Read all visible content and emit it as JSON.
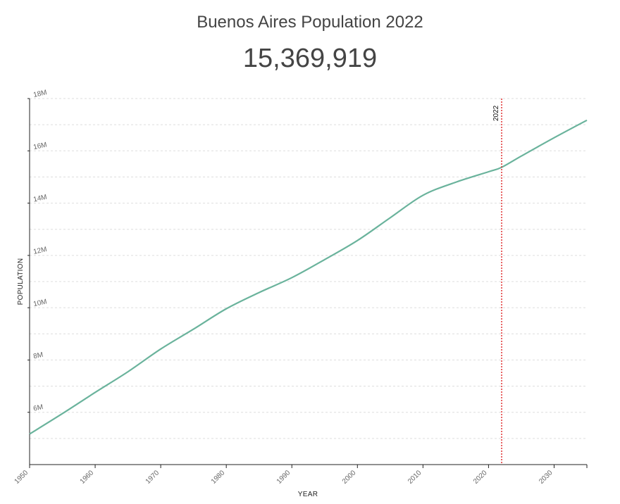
{
  "header": {
    "title": "Buenos Aires Population 2022",
    "value": "15,369,919"
  },
  "chart_data": {
    "type": "line",
    "title": "Buenos Aires Population 2022",
    "xlabel": "YEAR",
    "ylabel": "POPULATION",
    "xlim": [
      1950,
      2035
    ],
    "ylim": [
      4000000,
      18000000
    ],
    "x_ticks": [
      1950,
      1960,
      1970,
      1980,
      1990,
      2000,
      2010,
      2020,
      2030
    ],
    "y_ticks": [
      {
        "value": 6000000,
        "label": "6M"
      },
      {
        "value": 8000000,
        "label": "8M"
      },
      {
        "value": 10000000,
        "label": "10M"
      },
      {
        "value": 12000000,
        "label": "12M"
      },
      {
        "value": 14000000,
        "label": "14M"
      },
      {
        "value": 16000000,
        "label": "16M"
      },
      {
        "value": 18000000,
        "label": "18M"
      }
    ],
    "grid": true,
    "marker": {
      "x": 2022,
      "label": "2022",
      "color": "#e03030"
    },
    "series": [
      {
        "color": "#6ab39c",
        "x": [
          1950,
          1955,
          1960,
          1965,
          1970,
          1975,
          1980,
          1985,
          1990,
          1995,
          2000,
          2005,
          2010,
          2015,
          2020,
          2022,
          2025,
          2030,
          2035
        ],
        "values": [
          5170000,
          5950000,
          6760000,
          7550000,
          8420000,
          9180000,
          9960000,
          10580000,
          11150000,
          11840000,
          12570000,
          13440000,
          14300000,
          14800000,
          15200000,
          15369919,
          15800000,
          16500000,
          17170000
        ]
      }
    ]
  }
}
